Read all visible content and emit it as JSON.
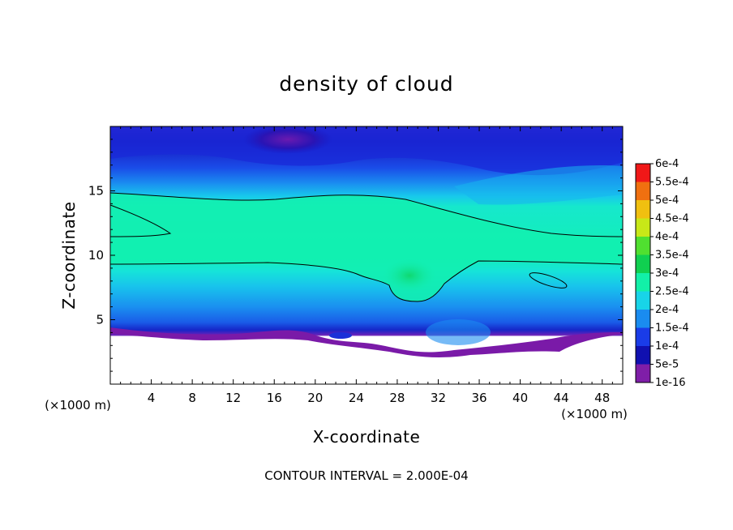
{
  "chart_data": {
    "type": "heatmap",
    "title": "density of cloud",
    "xlabel": "X-coordinate",
    "ylabel": "Z-coordinate",
    "x_unit": "(×1000 m)",
    "z_unit": "(×1000 m)",
    "xlim": [
      0,
      50
    ],
    "ylim": [
      0,
      20
    ],
    "x_ticks": [
      4,
      8,
      12,
      16,
      20,
      24,
      28,
      32,
      36,
      40,
      44,
      48
    ],
    "y_ticks": [
      5,
      10,
      15
    ],
    "colorbar": {
      "levels": [
        "1e-16",
        "5e-5",
        "1e-4",
        "1.5e-4",
        "2e-4",
        "2.5e-4",
        "3e-4",
        "3.5e-4",
        "4e-4",
        "4.5e-4",
        "5e-4",
        "5.5e-4",
        "6e-4"
      ],
      "colors": [
        "#7f1ea8",
        "#1010b0",
        "#1a3ce8",
        "#1a8cf0",
        "#18d4e8",
        "#12f0a8",
        "#10d050",
        "#50e030",
        "#c8e818",
        "#f0c010",
        "#f07010",
        "#f01818",
        "#f07878"
      ]
    },
    "contour_interval": "CONTOUR INTERVAL = 2.000E-04",
    "contour_level": 0.0002
  }
}
